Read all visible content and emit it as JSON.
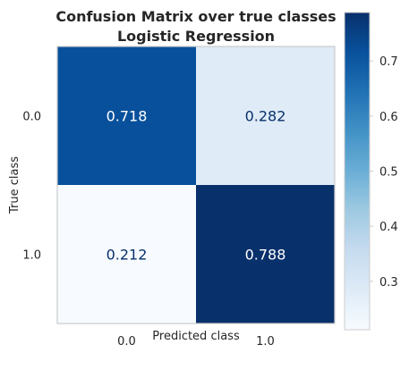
{
  "chart_data": {
    "type": "heatmap",
    "title_line1": "Confusion Matrix over true classes",
    "title_line2": "Logistic Regression",
    "xlabel": "Predicted class",
    "ylabel": "True class",
    "x_categories": [
      "0.0",
      "1.0"
    ],
    "y_categories": [
      "0.0",
      "1.0"
    ],
    "cell_labels": [
      [
        "0.718",
        "0.282"
      ],
      [
        "0.212",
        "0.788"
      ]
    ],
    "values": [
      [
        0.718,
        0.282
      ],
      [
        0.212,
        0.788
      ]
    ],
    "colormap": "Blues",
    "colorbar": {
      "vmin": 0.212,
      "vmax": 0.788,
      "ticks": [
        0.3,
        0.4,
        0.5,
        0.6,
        0.7
      ],
      "tick_labels": [
        "0.3",
        "0.4",
        "0.5",
        "0.6",
        "0.7"
      ]
    },
    "grid": false
  }
}
